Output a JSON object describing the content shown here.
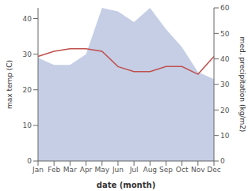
{
  "chart_data": {
    "type": "combo",
    "xlabel": "date (month)",
    "ylabel": "max temp (C)",
    "y2label": "med. precipitation (kg/m2)",
    "categories": [
      "Jan",
      "Feb",
      "Mar",
      "Apr",
      "May",
      "Jun",
      "Jul",
      "Aug",
      "Sep",
      "Oct",
      "Nov",
      "Dec"
    ],
    "series": [
      {
        "type": "area",
        "color": "#adb9da",
        "values": [
          29,
          27,
          27,
          30,
          43,
          42,
          39,
          43,
          37,
          32,
          25,
          23
        ]
      },
      {
        "type": "line",
        "axis": "y2",
        "color": "#c0504d",
        "values": [
          41,
          43,
          44,
          44,
          43,
          37,
          35,
          35,
          37,
          37,
          34,
          41
        ]
      }
    ],
    "ylim": [
      0,
      43
    ],
    "yticks": [
      0,
      10,
      20,
      30,
      40
    ],
    "y2lim": [
      0,
      60
    ],
    "y2ticks": [
      0,
      10,
      20,
      30,
      40,
      50,
      60
    ],
    "grid": false
  }
}
